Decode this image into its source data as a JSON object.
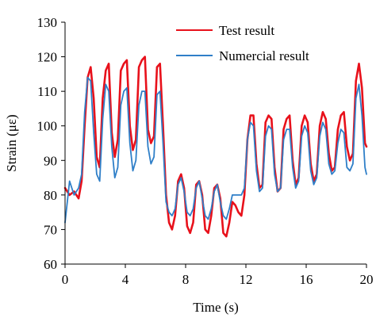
{
  "chart_data": {
    "type": "line",
    "title": "",
    "xlabel": "Time (s)",
    "ylabel": "Strain (με)",
    "xlim": [
      0,
      20
    ],
    "ylim": [
      60,
      130
    ],
    "xticks": [
      "0",
      "4",
      "8",
      "12",
      "16",
      "20"
    ],
    "yticks": [
      "60",
      "70",
      "80",
      "90",
      "100",
      "110",
      "120",
      "130"
    ],
    "grid": false,
    "legend_position": "top-right",
    "series": [
      {
        "name": "Test result",
        "color": "#e8111b",
        "x": [
          0.0,
          0.3,
          0.6,
          0.9,
          1.1,
          1.3,
          1.5,
          1.7,
          1.9,
          2.1,
          2.3,
          2.5,
          2.7,
          2.9,
          3.1,
          3.3,
          3.5,
          3.7,
          3.9,
          4.1,
          4.3,
          4.5,
          4.7,
          4.9,
          5.1,
          5.3,
          5.5,
          5.7,
          5.9,
          6.1,
          6.3,
          6.5,
          6.7,
          6.9,
          7.1,
          7.3,
          7.5,
          7.7,
          7.9,
          8.1,
          8.3,
          8.5,
          8.7,
          8.9,
          9.1,
          9.3,
          9.5,
          9.7,
          9.9,
          10.1,
          10.3,
          10.5,
          10.7,
          10.9,
          11.1,
          11.3,
          11.5,
          11.7,
          11.9,
          12.1,
          12.3,
          12.5,
          12.7,
          12.9,
          13.1,
          13.3,
          13.5,
          13.7,
          13.9,
          14.1,
          14.3,
          14.5,
          14.7,
          14.9,
          15.1,
          15.3,
          15.5,
          15.7,
          15.9,
          16.1,
          16.3,
          16.5,
          16.7,
          16.9,
          17.1,
          17.3,
          17.5,
          17.7,
          17.9,
          18.1,
          18.3,
          18.5,
          18.7,
          18.9,
          19.1,
          19.3,
          19.5,
          19.7,
          19.9,
          20.0
        ],
        "values": [
          82,
          80,
          81,
          79,
          84,
          100,
          114,
          117,
          108,
          91,
          88,
          108,
          116,
          118,
          98,
          91,
          96,
          116,
          118,
          119,
          100,
          93,
          96,
          117,
          119,
          120,
          99,
          95,
          97,
          117,
          118,
          100,
          80,
          72,
          70,
          74,
          84,
          86,
          82,
          71,
          69,
          72,
          83,
          84,
          80,
          70,
          69,
          74,
          82,
          83,
          79,
          69,
          68,
          72,
          78,
          77,
          75,
          74,
          80,
          96,
          103,
          103,
          89,
          82,
          83,
          101,
          103,
          102,
          88,
          81,
          82,
          99,
          102,
          103,
          90,
          83,
          85,
          100,
          103,
          101,
          89,
          84,
          86,
          100,
          104,
          102,
          92,
          87,
          88,
          99,
          103,
          104,
          94,
          90,
          92,
          113,
          118,
          111,
          95,
          94
        ]
      },
      {
        "name": "Numercial result",
        "color": "#2f7fc8",
        "x": [
          0.0,
          0.3,
          0.6,
          0.9,
          1.1,
          1.3,
          1.5,
          1.7,
          1.9,
          2.1,
          2.3,
          2.5,
          2.7,
          2.9,
          3.1,
          3.3,
          3.5,
          3.7,
          3.9,
          4.1,
          4.3,
          4.5,
          4.7,
          4.9,
          5.1,
          5.3,
          5.5,
          5.7,
          5.9,
          6.1,
          6.3,
          6.5,
          6.7,
          6.9,
          7.1,
          7.3,
          7.5,
          7.7,
          7.9,
          8.1,
          8.3,
          8.5,
          8.7,
          8.9,
          9.1,
          9.3,
          9.5,
          9.7,
          9.9,
          10.1,
          10.3,
          10.5,
          10.7,
          10.9,
          11.1,
          11.3,
          11.5,
          11.7,
          11.9,
          12.1,
          12.3,
          12.5,
          12.7,
          12.9,
          13.1,
          13.3,
          13.5,
          13.7,
          13.9,
          14.1,
          14.3,
          14.5,
          14.7,
          14.9,
          15.1,
          15.3,
          15.5,
          15.7,
          15.9,
          16.1,
          16.3,
          16.5,
          16.7,
          16.9,
          17.1,
          17.3,
          17.5,
          17.7,
          17.9,
          18.1,
          18.3,
          18.5,
          18.7,
          18.9,
          19.1,
          19.3,
          19.5,
          19.7,
          19.9,
          20.0
        ],
        "values": [
          72,
          84,
          80,
          82,
          86,
          104,
          114,
          113,
          98,
          86,
          84,
          102,
          112,
          110,
          94,
          85,
          88,
          106,
          110,
          111,
          95,
          87,
          90,
          106,
          110,
          110,
          94,
          89,
          91,
          109,
          110,
          95,
          78,
          75,
          74,
          76,
          83,
          85,
          81,
          75,
          74,
          76,
          82,
          84,
          79,
          74,
          73,
          76,
          81,
          83,
          78,
          74,
          73,
          76,
          80,
          80,
          80,
          80,
          82,
          96,
          101,
          100,
          87,
          81,
          82,
          97,
          100,
          99,
          86,
          81,
          82,
          96,
          99,
          99,
          88,
          82,
          84,
          97,
          100,
          98,
          87,
          83,
          85,
          97,
          101,
          99,
          89,
          86,
          87,
          95,
          99,
          98,
          88,
          87,
          89,
          108,
          112,
          103,
          88,
          86
        ]
      }
    ]
  }
}
